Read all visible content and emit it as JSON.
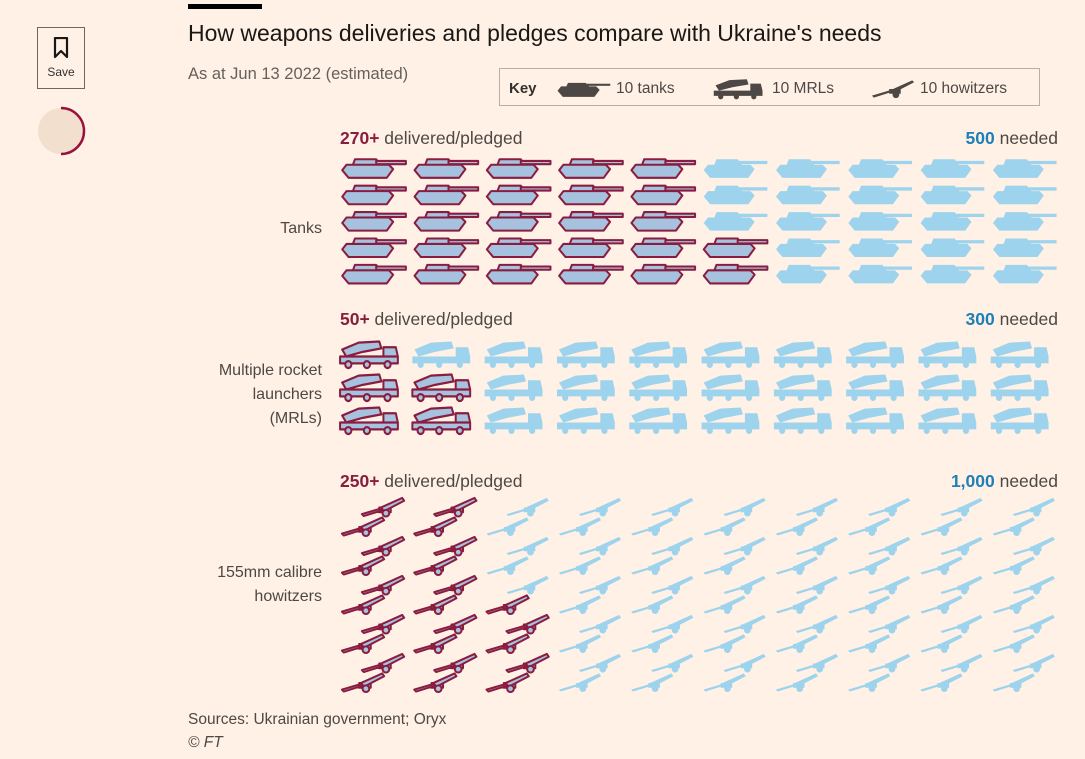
{
  "ui": {
    "save_label": "Save",
    "progress_fraction": 0.5
  },
  "colors": {
    "background": "#fff1e5",
    "delivered_fill": "#a6c2df",
    "delivered_outline": "#8a1d3f",
    "needed_fill": "#9dd3ec",
    "key_icon": "#4d4845",
    "delivered_text": "#8a1d3f",
    "needed_text": "#1f7fb8"
  },
  "chart_data": {
    "type": "pictogram",
    "title": "How weapons deliveries and pledges compare with Ukraine's needs",
    "subtitle": "As at Jun 13 2022 (estimated)",
    "key": {
      "label": "Key",
      "items": [
        {
          "icon": "tank-icon",
          "label": "10 tanks"
        },
        {
          "icon": "mrl-icon",
          "label": "10 MRLs"
        },
        {
          "icon": "howitzer-icon",
          "label": "10 howitzers"
        }
      ]
    },
    "categories": [
      {
        "name": "Tanks",
        "label_lines": [
          "Tanks"
        ],
        "icon": "tank-icon",
        "units_per_icon": 10,
        "delivered": 270,
        "needed": 500,
        "delivered_number": "270+",
        "delivered_suffix": " delivered/pledged",
        "needed_number": "500",
        "needed_suffix": " needed"
      },
      {
        "name": "Multiple rocket launchers (MRLs)",
        "label_lines": [
          "Multiple rocket",
          "launchers",
          "(MRLs)"
        ],
        "icon": "mrl-icon",
        "units_per_icon": 10,
        "delivered": 50,
        "needed": 300,
        "delivered_number": "50+",
        "delivered_suffix": " delivered/pledged",
        "needed_number": "300",
        "needed_suffix": " needed"
      },
      {
        "name": "155mm calibre howitzers",
        "label_lines": [
          "155mm calibre",
          "howitzers"
        ],
        "icon": "howitzer-icon",
        "units_per_icon": 10,
        "delivered": 250,
        "needed": 1000,
        "delivered_number": "250+",
        "delivered_suffix": " delivered/pledged",
        "needed_number": "1,000",
        "needed_suffix": " needed"
      }
    ],
    "sources": "Sources: Ukrainian government; Oryx",
    "copyright": "© FT"
  }
}
